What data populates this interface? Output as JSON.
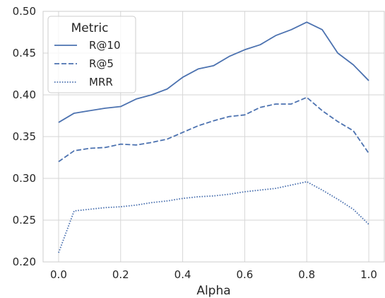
{
  "chart_data": {
    "type": "line",
    "title": "",
    "xlabel": "Alpha",
    "ylabel": "",
    "xlim": [
      -0.05,
      1.05
    ],
    "ylim": [
      0.2,
      0.5
    ],
    "xticks": [
      "0.0",
      "0.2",
      "0.4",
      "0.6",
      "0.8",
      "1.0"
    ],
    "yticks": [
      "0.20",
      "0.25",
      "0.30",
      "0.35",
      "0.40",
      "0.45",
      "0.50"
    ],
    "grid": true,
    "legend": {
      "title": "Metric",
      "placement": "top-left"
    },
    "color": "#4c72b0",
    "x": [
      0.0,
      0.05,
      0.1,
      0.15,
      0.2,
      0.25,
      0.3,
      0.35,
      0.4,
      0.45,
      0.5,
      0.55,
      0.6,
      0.65,
      0.7,
      0.75,
      0.8,
      0.85,
      0.9,
      0.95,
      1.0
    ],
    "series": [
      {
        "name": "R@10",
        "dash": "solid",
        "values": [
          0.367,
          0.378,
          0.381,
          0.384,
          0.386,
          0.395,
          0.4,
          0.407,
          0.421,
          0.431,
          0.435,
          0.446,
          0.454,
          0.46,
          0.471,
          0.478,
          0.487,
          0.478,
          0.45,
          0.436,
          0.417
        ]
      },
      {
        "name": "R@5",
        "dash": "dashed",
        "values": [
          0.32,
          0.333,
          0.336,
          0.337,
          0.341,
          0.34,
          0.343,
          0.347,
          0.355,
          0.363,
          0.369,
          0.374,
          0.376,
          0.385,
          0.389,
          0.389,
          0.397,
          0.381,
          0.368,
          0.357,
          0.33
        ]
      },
      {
        "name": "MRR",
        "dash": "dotted",
        "values": [
          0.211,
          0.261,
          0.263,
          0.265,
          0.266,
          0.268,
          0.271,
          0.273,
          0.276,
          0.278,
          0.279,
          0.281,
          0.284,
          0.286,
          0.288,
          0.292,
          0.296,
          0.286,
          0.275,
          0.263,
          0.245
        ]
      }
    ]
  }
}
